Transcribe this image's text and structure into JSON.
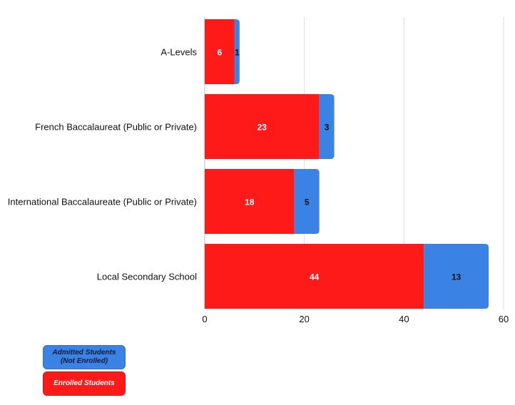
{
  "chart_data": {
    "type": "bar",
    "orientation": "horizontal",
    "stacked": true,
    "categories": [
      "A-Levels",
      "French Baccalaureat (Public or Private)",
      "International Baccalaureate (Public or Private)",
      "Local Secondary School"
    ],
    "series": [
      {
        "name": "Enrolled Students",
        "values": [
          6,
          23,
          18,
          44
        ],
        "color": "#ff1a1a",
        "label_color": "#ffffff"
      },
      {
        "name": "Admitted Students (Not Enrolled)",
        "values": [
          1,
          3,
          5,
          13
        ],
        "color": "#3a82e4",
        "label_color": "#111111"
      }
    ],
    "xlim": [
      0,
      60
    ],
    "xticks": [
      "0",
      "20",
      "40",
      "60"
    ],
    "grid": true,
    "legend_position": "bottom-left"
  },
  "legend": {
    "admitted": "Admitted Students\n(Not Enrolled)",
    "enrolled": "Enrolled Students"
  }
}
